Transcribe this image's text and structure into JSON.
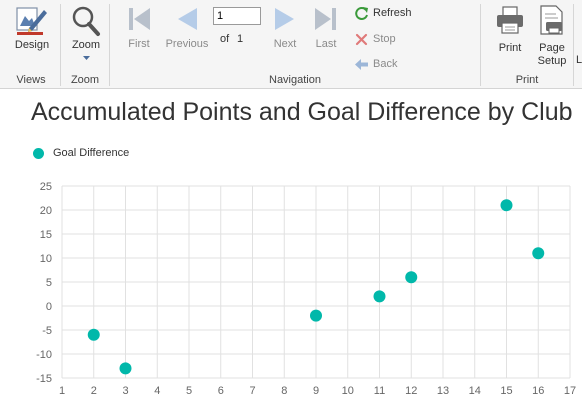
{
  "toolbar": {
    "views": {
      "design_label": "Design",
      "group_label": "Views"
    },
    "zoom": {
      "zoom_label": "Zoom",
      "group_label": "Zoom"
    },
    "navigation": {
      "first_label": "First",
      "previous_label": "Previous",
      "page_value": "1",
      "of_label": "of",
      "total_pages": "1",
      "next_label": "Next",
      "last_label": "Last",
      "refresh_label": "Refresh",
      "stop_label": "Stop",
      "back_label": "Back",
      "group_label": "Navigation"
    },
    "print": {
      "print_label": "Print",
      "page_setup_label_line1": "Page",
      "page_setup_label_line2": "Setup",
      "group_label": "Print"
    }
  },
  "colors": {
    "accent": "#01b8aa",
    "ribbon_bg": "#f5f5f5"
  },
  "chart_data": {
    "type": "scatter",
    "title": "Accumulated Points and Goal Difference by Club",
    "xlabel": "",
    "ylabel": "",
    "xlim": [
      1,
      17
    ],
    "ylim": [
      -15,
      25
    ],
    "x_ticks": [
      1,
      2,
      3,
      4,
      5,
      6,
      7,
      8,
      9,
      10,
      11,
      12,
      13,
      14,
      15,
      16,
      17
    ],
    "y_ticks": [
      25,
      20,
      15,
      10,
      5,
      0,
      -5,
      -10,
      -15
    ],
    "grid": true,
    "legend_position": "top-left",
    "series": [
      {
        "name": "Goal Difference",
        "color": "#01b8aa",
        "points": [
          {
            "x": 2,
            "y": -6
          },
          {
            "x": 3,
            "y": -13
          },
          {
            "x": 9,
            "y": -2
          },
          {
            "x": 11,
            "y": 2
          },
          {
            "x": 12,
            "y": 6
          },
          {
            "x": 15,
            "y": 21
          },
          {
            "x": 16,
            "y": 11
          }
        ]
      }
    ]
  }
}
